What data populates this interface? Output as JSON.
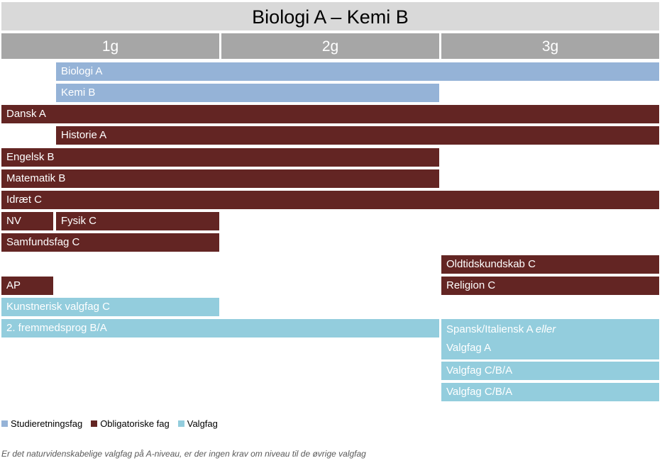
{
  "title": "Biologi A – Kemi B",
  "years": [
    "1g",
    "2g",
    "3g"
  ],
  "bars": {
    "biologi_a": "Biologi A",
    "kemi_b": "Kemi B",
    "dansk_a": "Dansk A",
    "historie_a": "Historie A",
    "engelsk_b": "Engelsk B",
    "matematik_b": "Matematik B",
    "idraet_c": "Idræt C",
    "nv": "NV",
    "fysik_c": "Fysik C",
    "samfundsfag_c": "Samfundsfag C",
    "oldtidskundskab_c": "Oldtidskundskab C",
    "ap": "AP",
    "religion_c": "Religion C",
    "kunstnerisk_valgfag_c": "Kunstnerisk valgfag C",
    "fremmedsprog": "2. fremmedsprog B/A",
    "spansk_line1": "Spansk/Italiensk A",
    "spansk_eller": "eller",
    "spansk_line2": "Valgfag A",
    "valgfag_cba_1": "Valgfag C/B/A",
    "valgfag_cba_2": "Valgfag C/B/A"
  },
  "legend": [
    {
      "label": "Studieretningsfag",
      "color": "#95b3d7"
    },
    {
      "label": "Obligatoriske fag",
      "color": "#632523"
    },
    {
      "label": "Valgfag",
      "color": "#93cddd"
    }
  ],
  "footnote": "Er det naturvidenskabelige valgfag på A-niveau, er der ingen krav om niveau til de øvrige valgfag"
}
